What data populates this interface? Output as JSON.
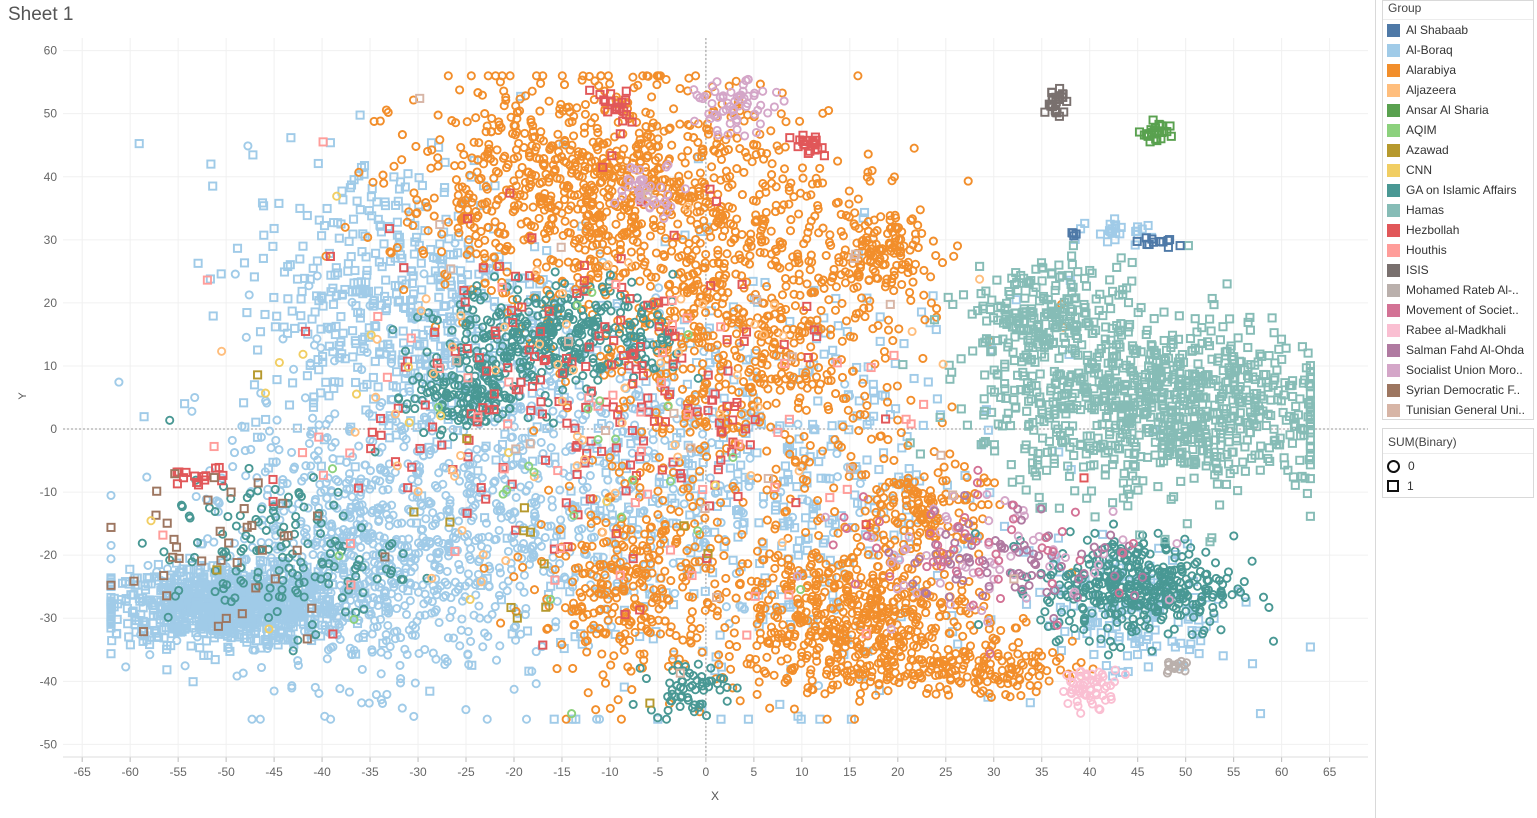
{
  "title": "Sheet 1",
  "colors": {
    "Al Shabaab": "#4e79a7",
    "Al-Boraq": "#a0cbe8",
    "Alarabiya": "#f28e2b",
    "Aljazeera": "#ffbe7d",
    "Ansar Al Sharia": "#59a14f",
    "AQIM": "#8cd17d",
    "Azawad": "#b6992d",
    "CNN": "#f1ce63",
    "GA on Islamic Affairs": "#499894",
    "Hamas": "#86bcb6",
    "Hezbollah": "#e15759",
    "Houthis": "#ff9d9a",
    "ISIS": "#79706e",
    "Mohamed Rateb Al-..": "#bab0ac",
    "Movement of Societ..": "#d37295",
    "Rabee al-Madkhali": "#fabfd2",
    "Salman Fahd Al-Ohda": "#b07aa1",
    "Socialist Union Moro..": "#d4a6c8",
    "Syrian Democratic F..": "#9d7660",
    "Tunisian General Uni..": "#d7b5a6"
  },
  "legend": {
    "group_title": "Group",
    "groups": [
      "Al Shabaab",
      "Al-Boraq",
      "Alarabiya",
      "Aljazeera",
      "Ansar Al Sharia",
      "AQIM",
      "Azawad",
      "CNN",
      "GA on Islamic Affairs",
      "Hamas",
      "Hezbollah",
      "Houthis",
      "ISIS",
      "Mohamed Rateb Al-..",
      "Movement of Societ..",
      "Rabee al-Madkhali",
      "Salman Fahd Al-Ohda",
      "Socialist Union Moro..",
      "Syrian Democratic F..",
      "Tunisian General Uni.."
    ],
    "shape_title": "SUM(Binary)",
    "shapes": [
      {
        "label": "0",
        "shape": "circle"
      },
      {
        "label": "1",
        "shape": "square"
      }
    ]
  },
  "chart_data": {
    "type": "scatter",
    "title": "",
    "xlabel": "X",
    "ylabel": "Y",
    "xlim": [
      -67,
      69
    ],
    "ylim": [
      -52,
      62
    ],
    "xticks": [
      -65,
      -60,
      -55,
      -50,
      -45,
      -40,
      -35,
      -30,
      -25,
      -20,
      -15,
      -10,
      -5,
      0,
      5,
      10,
      15,
      20,
      25,
      30,
      35,
      40,
      45,
      50,
      55,
      60,
      65
    ],
    "yticks": [
      60,
      50,
      40,
      30,
      20,
      10,
      0,
      -10,
      -20,
      -30,
      -40,
      -50
    ],
    "grid": true,
    "zero_lines": true,
    "legend_position": "right",
    "approximate_clusters": [
      {
        "group": "Al-Boraq",
        "shape": "square",
        "cx": -50,
        "cy": -28,
        "sx": 6,
        "sy": 3,
        "n": 900
      },
      {
        "group": "Al-Boraq",
        "shape": "circle",
        "cx": -35,
        "cy": -22,
        "sx": 9,
        "sy": 9,
        "n": 700
      },
      {
        "group": "Al-Boraq",
        "shape": "square",
        "cx": -32,
        "cy": 20,
        "sx": 8,
        "sy": 12,
        "n": 500
      },
      {
        "group": "Al-Boraq",
        "shape": "circle",
        "cx": -20,
        "cy": -5,
        "sx": 14,
        "sy": 14,
        "n": 600
      },
      {
        "group": "Al-Boraq",
        "shape": "square",
        "cx": 5,
        "cy": -10,
        "sx": 14,
        "sy": 16,
        "n": 500
      },
      {
        "group": "Al-Boraq",
        "shape": "square",
        "cx": 45,
        "cy": -30,
        "sx": 5,
        "sy": 5,
        "n": 120
      },
      {
        "group": "Al-Boraq",
        "shape": "square",
        "cx": 44,
        "cy": 31,
        "sx": 2,
        "sy": 1,
        "n": 25
      },
      {
        "group": "Alarabiya",
        "shape": "circle",
        "cx": -12,
        "cy": 38,
        "sx": 10,
        "sy": 9,
        "n": 900
      },
      {
        "group": "Alarabiya",
        "shape": "circle",
        "cx": 5,
        "cy": 15,
        "sx": 9,
        "sy": 14,
        "n": 700
      },
      {
        "group": "Alarabiya",
        "shape": "circle",
        "cx": 15,
        "cy": -30,
        "sx": 7,
        "sy": 6,
        "n": 600
      },
      {
        "group": "Alarabiya",
        "shape": "circle",
        "cx": 23,
        "cy": -13,
        "sx": 3,
        "sy": 4,
        "n": 150
      },
      {
        "group": "Alarabiya",
        "shape": "circle",
        "cx": -8,
        "cy": -25,
        "sx": 5,
        "sy": 8,
        "n": 300
      },
      {
        "group": "Alarabiya",
        "shape": "circle",
        "cx": 18,
        "cy": 28,
        "sx": 3,
        "sy": 3,
        "n": 120
      },
      {
        "group": "Alarabiya",
        "shape": "circle",
        "cx": 28,
        "cy": -38,
        "sx": 5,
        "sy": 2,
        "n": 150
      },
      {
        "group": "GA on Islamic Affairs",
        "shape": "circle",
        "cx": -15,
        "cy": 15,
        "sx": 6,
        "sy": 4,
        "n": 350
      },
      {
        "group": "GA on Islamic Affairs",
        "shape": "circle",
        "cx": -25,
        "cy": 5,
        "sx": 3,
        "sy": 3,
        "n": 150
      },
      {
        "group": "GA on Islamic Affairs",
        "shape": "circle",
        "cx": 45,
        "cy": -25,
        "sx": 5,
        "sy": 4,
        "n": 400
      },
      {
        "group": "GA on Islamic Affairs",
        "shape": "circle",
        "cx": -2,
        "cy": -41,
        "sx": 2,
        "sy": 2,
        "n": 60
      },
      {
        "group": "GA on Islamic Affairs",
        "shape": "circle",
        "cx": -44,
        "cy": -20,
        "sx": 6,
        "sy": 6,
        "n": 150
      },
      {
        "group": "Hamas",
        "shape": "square",
        "cx": 47,
        "cy": 4,
        "sx": 9,
        "sy": 7,
        "n": 900
      },
      {
        "group": "Hamas",
        "shape": "square",
        "cx": 35,
        "cy": 18,
        "sx": 4,
        "sy": 4,
        "n": 200
      },
      {
        "group": "Hezbollah",
        "shape": "square",
        "cx": -12,
        "cy": 5,
        "sx": 12,
        "sy": 14,
        "n": 200
      },
      {
        "group": "Hezbollah",
        "shape": "square",
        "cx": 11,
        "cy": 45,
        "sx": 1,
        "sy": 1,
        "n": 20
      },
      {
        "group": "Hezbollah",
        "shape": "square",
        "cx": -10,
        "cy": 51,
        "sx": 1,
        "sy": 2,
        "n": 20
      },
      {
        "group": "Hezbollah",
        "shape": "square",
        "cx": -53,
        "cy": -8,
        "sx": 1.5,
        "sy": 1,
        "n": 15
      },
      {
        "group": "ISIS",
        "shape": "square",
        "cx": 36.5,
        "cy": 52,
        "sx": 0.6,
        "sy": 1,
        "n": 25
      },
      {
        "group": "Ansar Al Sharia",
        "shape": "square",
        "cx": 47,
        "cy": 47,
        "sx": 0.8,
        "sy": 0.8,
        "n": 25
      },
      {
        "group": "Al Shabaab",
        "shape": "square",
        "cx": 47,
        "cy": 29.5,
        "sx": 1,
        "sy": 0.6,
        "n": 12
      },
      {
        "group": "Al Shabaab",
        "shape": "square",
        "cx": 38.5,
        "cy": 31,
        "sx": 0.4,
        "sy": 0.3,
        "n": 4
      },
      {
        "group": "Socialist Union Moro..",
        "shape": "circle",
        "cx": 3,
        "cy": 51,
        "sx": 2,
        "sy": 2,
        "n": 60
      },
      {
        "group": "Socialist Union Moro..",
        "shape": "circle",
        "cx": -6,
        "cy": 38,
        "sx": 2,
        "sy": 2,
        "n": 40
      },
      {
        "group": "Socialist Union Moro..",
        "shape": "circle",
        "cx": 30,
        "cy": -20,
        "sx": 8,
        "sy": 5,
        "n": 60
      },
      {
        "group": "Rabee al-Madkhali",
        "shape": "circle",
        "cx": 40,
        "cy": -41,
        "sx": 1.5,
        "sy": 1.5,
        "n": 60
      },
      {
        "group": "Salman Fahd Al-Ohda",
        "shape": "circle",
        "cx": 32,
        "cy": -20,
        "sx": 6,
        "sy": 4,
        "n": 80
      },
      {
        "group": "Movement of Societ..",
        "shape": "circle",
        "cx": 28,
        "cy": -18,
        "sx": 8,
        "sy": 6,
        "n": 50
      },
      {
        "group": "Mohamed Rateb Al-..",
        "shape": "circle",
        "cx": 49,
        "cy": -38,
        "sx": 0.7,
        "sy": 0.6,
        "n": 15
      },
      {
        "group": "Syrian Democratic F..",
        "shape": "square",
        "cx": -50,
        "cy": -18,
        "sx": 7,
        "sy": 8,
        "n": 40
      },
      {
        "group": "Houthis",
        "shape": "square",
        "cx": -15,
        "cy": 0,
        "sx": 20,
        "sy": 15,
        "n": 60
      },
      {
        "group": "Aljazeera",
        "shape": "circle",
        "cx": -15,
        "cy": 5,
        "sx": 18,
        "sy": 14,
        "n": 60
      },
      {
        "group": "AQIM",
        "shape": "circle",
        "cx": -20,
        "cy": -10,
        "sx": 15,
        "sy": 15,
        "n": 25
      },
      {
        "group": "Azawad",
        "shape": "square",
        "cx": -20,
        "cy": -20,
        "sx": 18,
        "sy": 10,
        "n": 15
      },
      {
        "group": "CNN",
        "shape": "circle",
        "cx": -30,
        "cy": -5,
        "sx": 15,
        "sy": 15,
        "n": 15
      },
      {
        "group": "Tunisian General Uni..",
        "shape": "square",
        "cx": -10,
        "cy": 0,
        "sx": 20,
        "sy": 20,
        "n": 25
      }
    ]
  }
}
